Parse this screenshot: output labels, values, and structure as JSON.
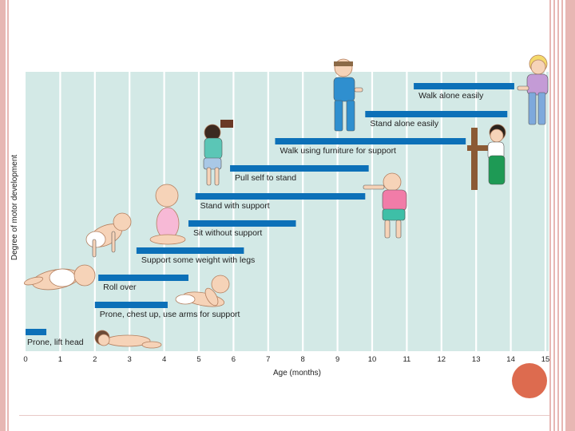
{
  "chart_data": {
    "type": "bar",
    "orientation": "horizontal-range",
    "xlabel": "Age (months)",
    "ylabel": "Degree of motor development",
    "xlim": [
      0,
      15
    ],
    "x_ticks": [
      "0",
      "1",
      "2",
      "3",
      "4",
      "5",
      "6",
      "7",
      "8",
      "9",
      "10",
      "11",
      "12",
      "13",
      "14",
      "15"
    ],
    "grid": true,
    "legend": "none",
    "bar_color": "#0c70b8",
    "plot_background": "#d3e9e6",
    "gridline_color": "#ffffff",
    "milestones": [
      {
        "label": "Prone, lift head",
        "start": 0,
        "end": 0.6
      },
      {
        "label": "Prone, chest up, use arms for support",
        "start": 2.0,
        "end": 4.1
      },
      {
        "label": "Roll over",
        "start": 2.1,
        "end": 4.7
      },
      {
        "label": "Support some weight with legs",
        "start": 3.2,
        "end": 6.3
      },
      {
        "label": "Sit without support",
        "start": 4.7,
        "end": 7.8
      },
      {
        "label": "Stand with support",
        "start": 4.9,
        "end": 9.8
      },
      {
        "label": "Pull self to stand",
        "start": 5.9,
        "end": 9.9
      },
      {
        "label": "Walk using furniture for support",
        "start": 7.2,
        "end": 12.7
      },
      {
        "label": "Stand alone easily",
        "start": 9.8,
        "end": 13.9
      },
      {
        "label": "Walk alone easily",
        "start": 11.2,
        "end": 14.1
      }
    ],
    "illustrations": [
      "baby-lifting-head",
      "baby-chest-up",
      "baby-rolling",
      "baby-crawling",
      "baby-sitting",
      "toddler-reaching",
      "toddler-pulling-up",
      "toddler-standing",
      "toddler-cruising-furniture",
      "toddler-walking"
    ]
  },
  "colors": {
    "accent_circle": "#dd6b4f",
    "slide_stripes": "#e7b7b3"
  }
}
